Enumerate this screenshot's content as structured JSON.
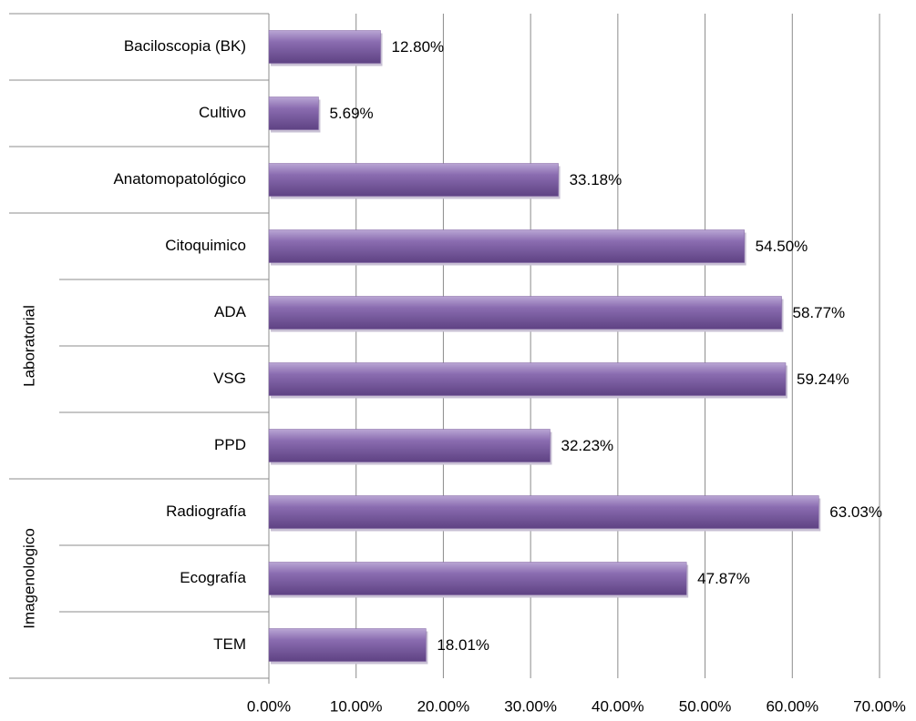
{
  "chart_data": {
    "type": "bar",
    "orientation": "horizontal",
    "categories": [
      "Baciloscopia (BK)",
      "Cultivo",
      "Anatomopatológico",
      "Citoquimico",
      "ADA",
      "VSG",
      "PPD",
      "Radiografía",
      "Ecografía",
      "TEM"
    ],
    "values": [
      12.8,
      5.69,
      33.18,
      54.5,
      58.77,
      59.24,
      32.23,
      63.03,
      47.87,
      18.01
    ],
    "value_labels": [
      "12.80%",
      "5.69%",
      "33.18%",
      "54.50%",
      "58.77%",
      "59.24%",
      "32.23%",
      "63.03%",
      "47.87%",
      "18.01%"
    ],
    "groups": [
      {
        "label": null,
        "size": 1
      },
      {
        "label": null,
        "size": 1
      },
      {
        "label": null,
        "size": 1
      },
      {
        "label": "Laboratorial",
        "size": 4
      },
      {
        "label": "Imagenologico",
        "size": 3
      }
    ],
    "color": "#8064a2",
    "xlim": [
      0,
      70
    ],
    "xticks": [
      {
        "value": 0,
        "label": "0.00%"
      },
      {
        "value": 10,
        "label": "10.00%"
      },
      {
        "value": 20,
        "label": "20.00%"
      },
      {
        "value": 30,
        "label": "30.00%"
      },
      {
        "value": 40,
        "label": "40.00%"
      },
      {
        "value": 50,
        "label": "50.00%"
      },
      {
        "value": 60,
        "label": "60.00%"
      },
      {
        "value": 70,
        "label": "70.00%"
      }
    ],
    "grid": true
  }
}
